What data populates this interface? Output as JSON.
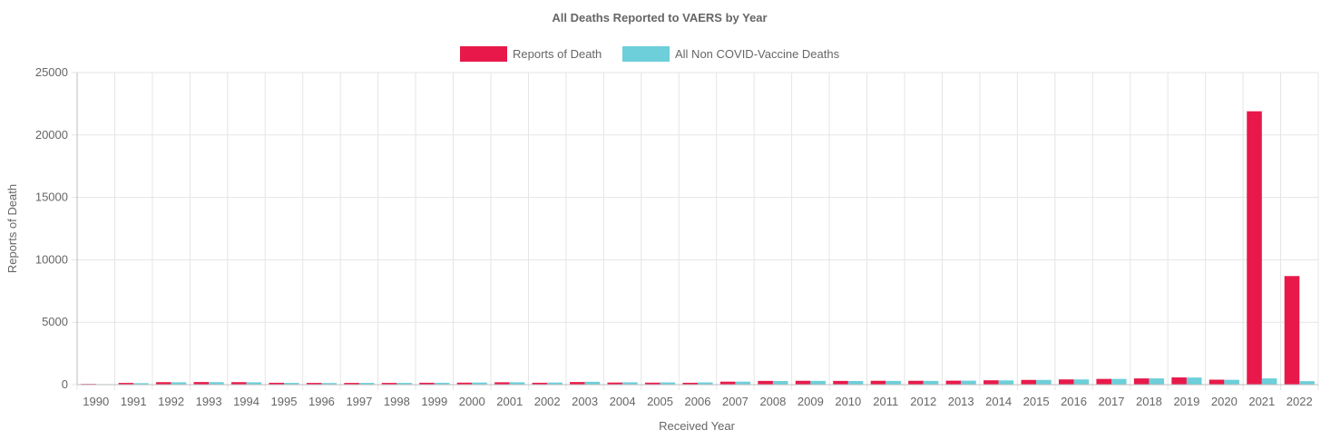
{
  "chart_data": {
    "type": "bar",
    "title": "All Deaths Reported to VAERS by Year",
    "xlabel": "Received Year",
    "ylabel": "Reports of Death",
    "ylim": [
      0,
      25000
    ],
    "yticks": [
      0,
      5000,
      10000,
      15000,
      20000,
      25000
    ],
    "grid": true,
    "legend_position": "top-center",
    "categories": [
      "1990",
      "1991",
      "1992",
      "1993",
      "1994",
      "1995",
      "1996",
      "1997",
      "1998",
      "1999",
      "2000",
      "2001",
      "2002",
      "2003",
      "2004",
      "2005",
      "2006",
      "2007",
      "2008",
      "2009",
      "2010",
      "2011",
      "2012",
      "2013",
      "2014",
      "2015",
      "2016",
      "2017",
      "2018",
      "2019",
      "2020",
      "2021",
      "2022"
    ],
    "series": [
      {
        "name": "Reports of Death",
        "color": "#e8194a",
        "values": [
          60,
          140,
          200,
          210,
          200,
          150,
          140,
          140,
          140,
          150,
          160,
          190,
          150,
          210,
          170,
          160,
          150,
          240,
          300,
          310,
          300,
          310,
          310,
          320,
          350,
          380,
          420,
          460,
          500,
          580,
          400,
          21900,
          8700
        ]
      },
      {
        "name": "All Non COVID-Vaccine Deaths",
        "color": "#6ccfda",
        "values": [
          40,
          120,
          190,
          200,
          190,
          140,
          130,
          140,
          140,
          150,
          170,
          190,
          170,
          230,
          190,
          180,
          180,
          240,
          290,
          300,
          290,
          300,
          300,
          320,
          340,
          380,
          420,
          460,
          500,
          570,
          390,
          500,
          280
        ]
      }
    ]
  }
}
